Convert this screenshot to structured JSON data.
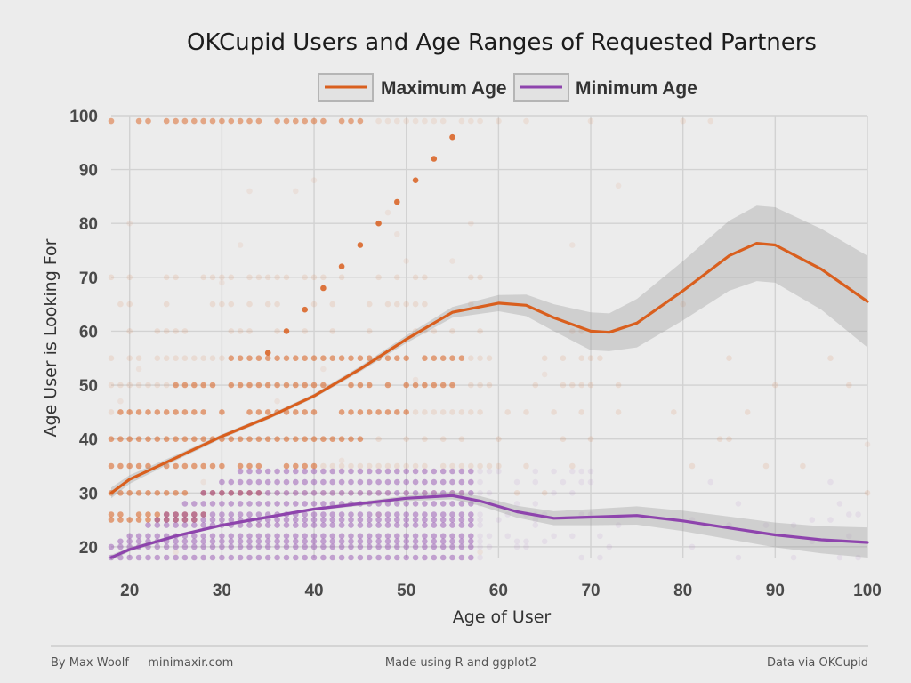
{
  "chart_data": {
    "type": "scatter",
    "title": "OKCupid Users and Age Ranges of Requested Partners",
    "xlabel": "Age of User",
    "ylabel": "Age User is Looking For",
    "xlim": [
      18,
      100
    ],
    "ylim": [
      18,
      100
    ],
    "x_ticks": [
      20,
      30,
      40,
      50,
      60,
      70,
      80,
      90,
      100
    ],
    "y_ticks": [
      20,
      30,
      40,
      50,
      60,
      70,
      80,
      90,
      100
    ],
    "grid": true,
    "legend_position": "top",
    "series": [
      {
        "name": "Maximum Age",
        "color": "#d95f1e",
        "smooth_x": [
          18,
          20,
          25,
          30,
          35,
          40,
          45,
          50,
          55,
          60,
          63,
          66,
          70,
          72,
          75,
          80,
          85,
          88,
          90,
          95,
          100
        ],
        "smooth_y": [
          30,
          32.5,
          36.5,
          40.5,
          44,
          48,
          53,
          58.5,
          63.5,
          65.2,
          64.8,
          62.5,
          60,
          59.8,
          61.5,
          67.5,
          74,
          76.3,
          76,
          71.5,
          65.5
        ],
        "band_half_width": [
          1,
          0.8,
          0.5,
          0.4,
          0.4,
          0.4,
          0.5,
          0.7,
          1,
          1.5,
          2,
          2.5,
          3.5,
          3.5,
          4.5,
          5.5,
          6.5,
          7,
          7,
          7.5,
          8.5
        ],
        "diagonal_x": [
          35,
          37,
          39,
          41,
          43,
          45,
          47,
          49,
          51,
          53,
          55
        ],
        "diagonal_y": [
          56,
          60,
          64,
          68,
          72,
          76,
          80,
          84,
          88,
          92,
          96
        ]
      },
      {
        "name": "Minimum Age",
        "color": "#8e44ad",
        "smooth_x": [
          18,
          20,
          25,
          30,
          35,
          40,
          45,
          50,
          55,
          58,
          62,
          66,
          70,
          75,
          80,
          85,
          90,
          95,
          100
        ],
        "smooth_y": [
          18,
          19.5,
          22,
          24,
          25.5,
          27,
          28,
          29,
          29.5,
          28.5,
          26.5,
          25.3,
          25.5,
          25.8,
          24.8,
          23.5,
          22.2,
          21.3,
          20.8
        ],
        "band_half_width": [
          0.5,
          0.4,
          0.3,
          0.3,
          0.3,
          0.3,
          0.4,
          0.5,
          0.7,
          0.9,
          1.1,
          1.3,
          1.5,
          1.7,
          1.9,
          2.1,
          2.3,
          2.5,
          2.8
        ]
      }
    ]
  },
  "footer": {
    "left": "By Max Woolf — minimaxir.com",
    "center": "Made using R and ggplot2",
    "right": "Data via OKCupid"
  }
}
